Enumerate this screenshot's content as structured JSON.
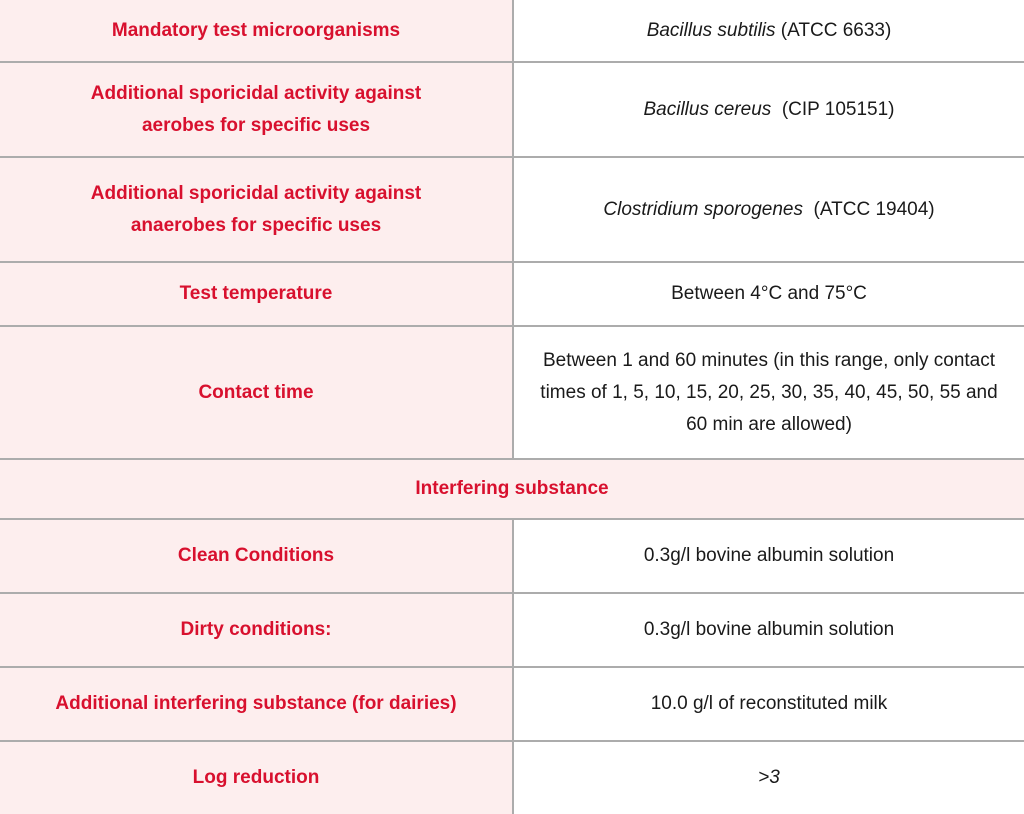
{
  "rows": [
    {
      "label": "Mandatory test microorganisms",
      "value_italic": "Bacillus subtilis",
      "value": " (ATCC 6633)"
    },
    {
      "label": "Additional sporicidal activity against aerobes for specific uses",
      "value_italic": "Bacillus cereus",
      "value": "  (CIP 105151)"
    },
    {
      "label": "Additional sporicidal activity against anaerobes for specific uses",
      "value_italic": "Clostridium sporogenes",
      "value": "  (ATCC 19404)"
    },
    {
      "label": "Test temperature",
      "value": "Between 4°C and 75°C"
    },
    {
      "label": "Contact time",
      "value": "Between 1 and 60 minutes (in this range, only contact times of 1, 5, 10, 15, 20, 25, 30, 35, 40, 45, 50, 55 and 60 min are allowed)"
    },
    {
      "label": "Interfering substance"
    },
    {
      "label": "Clean Conditions",
      "value": "0.3g/l bovine albumin solution"
    },
    {
      "label": "Dirty conditions:",
      "value": "0.3g/l bovine albumin solution"
    },
    {
      "label": "Additional interfering substance (for dairies)",
      "value": "10.0 g/l of reconstituted milk"
    },
    {
      "label": "Log reduction",
      "value_italic": ">3"
    }
  ],
  "colors": {
    "label_text": "#d8102e",
    "label_bg": "#fdeeee",
    "border": "#acacac"
  }
}
